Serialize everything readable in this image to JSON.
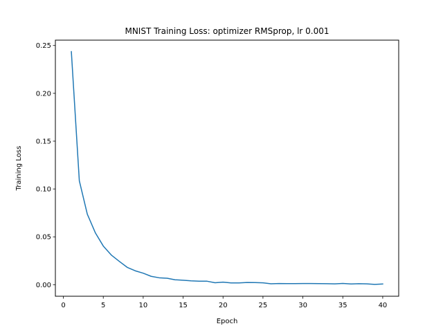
{
  "chart_data": {
    "type": "line",
    "title": "MNIST Training Loss: optimizer RMSprop, lr 0.001",
    "xlabel": "Epoch",
    "ylabel": "Training Loss",
    "xlim": [
      -1,
      42
    ],
    "ylim": [
      -0.0121,
      0.2556
    ],
    "xticks": [
      0,
      5,
      10,
      15,
      20,
      25,
      30,
      35,
      40
    ],
    "xtick_labels": [
      "0",
      "5",
      "10",
      "15",
      "20",
      "25",
      "30",
      "35",
      "40"
    ],
    "yticks": [
      0.0,
      0.05,
      0.1,
      0.15,
      0.2,
      0.25
    ],
    "ytick_labels": [
      "0.00",
      "0.05",
      "0.10",
      "0.15",
      "0.20",
      "0.25"
    ],
    "grid": false,
    "legend": "none",
    "series": [
      {
        "color": "#1f77b4",
        "x": [
          1,
          2,
          3,
          4,
          5,
          6,
          7,
          8,
          9,
          10,
          11,
          12,
          13,
          14,
          15,
          16,
          17,
          18,
          19,
          20,
          21,
          22,
          23,
          24,
          25,
          26,
          27,
          28,
          29,
          30,
          31,
          32,
          33,
          34,
          35,
          36,
          37,
          38,
          39,
          40
        ],
        "y": [
          0.2436,
          0.1086,
          0.0737,
          0.0543,
          0.0404,
          0.031,
          0.0244,
          0.0181,
          0.0145,
          0.012,
          0.0087,
          0.0072,
          0.0067,
          0.0051,
          0.0046,
          0.004,
          0.0036,
          0.0036,
          0.002,
          0.0026,
          0.0018,
          0.0018,
          0.0023,
          0.0022,
          0.0019,
          0.0009,
          0.0012,
          0.0011,
          0.0011,
          0.0012,
          0.0012,
          0.0011,
          0.001,
          0.0008,
          0.0013,
          0.0007,
          0.001,
          0.0008,
          0.0003,
          0.0007
        ]
      }
    ]
  }
}
